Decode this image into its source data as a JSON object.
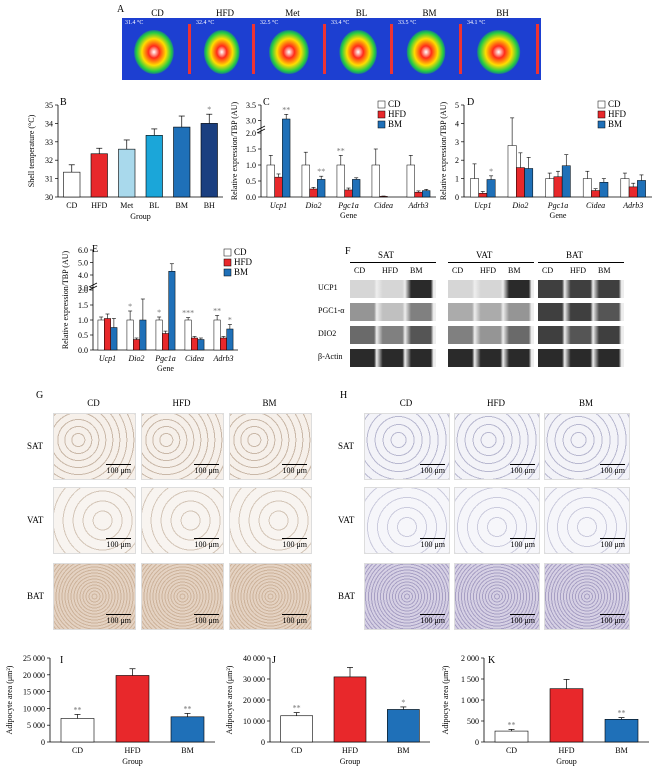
{
  "panels": {
    "A": "A",
    "B": "B",
    "C": "C",
    "D": "D",
    "E": "E",
    "F": "F",
    "G": "G",
    "H": "H",
    "I": "I",
    "J": "J",
    "K": "K"
  },
  "thermal": {
    "groups": [
      "CD",
      "HFD",
      "Met",
      "BL",
      "BM",
      "BH"
    ],
    "temps": [
      "31.4 °C",
      "32.4 °C",
      "32.5 °C",
      "33.4 °C",
      "33.5 °C",
      "34.1 °C"
    ]
  },
  "colors": {
    "CD": "#ffffff",
    "HFD": "#e8282b",
    "Met": "#a9d9ec",
    "BL": "#1ba6d9",
    "BM": "#1f70b8",
    "BH": "#1b3f80"
  },
  "chart_data": [
    {
      "id": "B",
      "type": "bar",
      "categories": [
        "CD",
        "HFD",
        "Met",
        "BL",
        "BM",
        "BH"
      ],
      "values": [
        31.35,
        32.35,
        32.6,
        33.35,
        33.8,
        34.0
      ],
      "errors": [
        0.4,
        0.3,
        0.5,
        0.35,
        0.6,
        0.5
      ],
      "sig": [
        "",
        "",
        "",
        "",
        "",
        "*"
      ],
      "ylabel": "Shell temperature (°C)",
      "xlabel": "Group",
      "ylim": [
        30,
        35
      ],
      "yticks": [
        30,
        31,
        32,
        33,
        34,
        35
      ]
    },
    {
      "id": "C",
      "type": "bar",
      "categories": [
        "Ucp1",
        "Dio2",
        "Pgc1a",
        "Cidea",
        "Adrb3"
      ],
      "ylabel": "Relative expression/TBP (AU)",
      "xlabel": "Gene",
      "yticks": [
        0,
        0.5,
        1.0,
        1.5,
        2.0,
        3.0,
        3.5
      ],
      "legend": [
        "CD",
        "HFD",
        "BM"
      ],
      "series": [
        {
          "name": "CD",
          "values": [
            1.0,
            1.0,
            1.0,
            1.0,
            1.0
          ],
          "errors": [
            0.3,
            0.4,
            0.3,
            0.5,
            0.3
          ]
        },
        {
          "name": "HFD",
          "values": [
            0.62,
            0.25,
            0.22,
            0.02,
            0.15
          ],
          "errors": [
            0.1,
            0.05,
            0.06,
            0.01,
            0.04
          ]
        },
        {
          "name": "BM",
          "values": [
            3.05,
            0.55,
            0.55,
            0.0,
            0.2
          ],
          "errors": [
            0.15,
            0.1,
            0.05,
            0.0,
            0.04
          ]
        }
      ],
      "sig": [
        [
          "",
          "",
          "**"
        ],
        [
          "",
          "",
          "**"
        ],
        [
          "**",
          "",
          ""
        ],
        [
          "",
          "",
          ""
        ],
        [
          "",
          "",
          ""
        ]
      ]
    },
    {
      "id": "D",
      "type": "bar",
      "categories": [
        "Ucp1",
        "Dio2",
        "Pgc1a",
        "Cidea",
        "Adrb3"
      ],
      "ylabel": "Relative expression/TBP (AU)",
      "xlabel": "Gene",
      "ylim": [
        0,
        5
      ],
      "yticks": [
        0,
        1,
        2,
        3,
        4,
        5
      ],
      "legend": [
        "CD",
        "HFD",
        "BM"
      ],
      "series": [
        {
          "name": "CD",
          "values": [
            1.0,
            2.8,
            1.0,
            1.0,
            1.0
          ],
          "errors": [
            0.8,
            1.5,
            0.3,
            0.4,
            0.3
          ]
        },
        {
          "name": "HFD",
          "values": [
            0.2,
            1.6,
            1.1,
            0.35,
            0.55
          ],
          "errors": [
            0.1,
            0.8,
            0.3,
            0.1,
            0.2
          ]
        },
        {
          "name": "BM",
          "values": [
            0.95,
            1.55,
            1.7,
            0.8,
            0.9
          ],
          "errors": [
            0.2,
            0.6,
            0.6,
            0.2,
            0.3
          ]
        }
      ],
      "sig": [
        [
          "",
          "",
          "*"
        ],
        [
          "",
          "",
          ""
        ],
        [
          "",
          "",
          ""
        ],
        [
          "",
          "",
          ""
        ],
        [
          "",
          "",
          ""
        ]
      ]
    },
    {
      "id": "E",
      "type": "bar",
      "categories": [
        "Ucp1",
        "Dio2",
        "Pgc1a",
        "Cidea",
        "Adrb3"
      ],
      "ylabel": "Relative expression/TBP (AU)",
      "xlabel": "Gene",
      "yticks": [
        0,
        0.5,
        1.0,
        1.5,
        2.0,
        3.0,
        4.0,
        5.0,
        6.0
      ],
      "legend": [
        "CD",
        "HFD",
        "BM"
      ],
      "series": [
        {
          "name": "CD",
          "values": [
            1.0,
            1.0,
            1.0,
            1.0,
            1.0
          ],
          "errors": [
            0.1,
            0.3,
            0.1,
            0.08,
            0.15
          ]
        },
        {
          "name": "HFD",
          "values": [
            1.05,
            0.35,
            0.55,
            0.4,
            0.4
          ],
          "errors": [
            0.15,
            0.05,
            0.08,
            0.05,
            0.05
          ]
        },
        {
          "name": "BM",
          "values": [
            0.75,
            1.0,
            4.3,
            0.35,
            0.7
          ],
          "errors": [
            0.3,
            0.7,
            0.6,
            0.05,
            0.15
          ]
        }
      ],
      "sig": [
        [
          "",
          "",
          ""
        ],
        [
          "*",
          "",
          ""
        ],
        [
          "*",
          "",
          ""
        ],
        [
          "***",
          "",
          ""
        ],
        [
          "**",
          "",
          "*"
        ]
      ]
    },
    {
      "id": "I",
      "type": "bar",
      "categories": [
        "CD",
        "HFD",
        "BM"
      ],
      "values": [
        7000,
        19800,
        7500
      ],
      "errors": [
        1200,
        2000,
        1000
      ],
      "sig": [
        "**",
        "",
        "**"
      ],
      "ylabel": "Adipocyte area (μm²)",
      "xlabel": "Group",
      "ylim": [
        0,
        25000
      ],
      "yticks": [
        0,
        5000,
        10000,
        15000,
        20000,
        25000
      ],
      "ytick_labels": [
        "0",
        "5 000",
        "10 000",
        "15 000",
        "20 000",
        "25 000"
      ]
    },
    {
      "id": "J",
      "type": "bar",
      "categories": [
        "CD",
        "HFD",
        "BM"
      ],
      "values": [
        12500,
        31000,
        15500
      ],
      "errors": [
        1500,
        4500,
        1200
      ],
      "sig": [
        "**",
        "",
        "*"
      ],
      "ylabel": "Adipocyte area (μm²)",
      "xlabel": "Group",
      "ylim": [
        0,
        40000
      ],
      "yticks": [
        0,
        10000,
        20000,
        30000,
        40000
      ],
      "ytick_labels": [
        "0",
        "10 000",
        "20 000",
        "30 000",
        "40 000"
      ]
    },
    {
      "id": "K",
      "type": "bar",
      "categories": [
        "CD",
        "HFD",
        "BM"
      ],
      "values": [
        260,
        1270,
        540
      ],
      "errors": [
        40,
        220,
        40
      ],
      "sig": [
        "**",
        "",
        "**"
      ],
      "ylabel": "Adipocyte area (μm²)",
      "xlabel": "Group",
      "ylim": [
        0,
        2000
      ],
      "yticks": [
        0,
        500,
        1000,
        1500,
        2000
      ],
      "ytick_labels": [
        "0",
        "500",
        "1 000",
        "1 500",
        "2 000"
      ]
    }
  ],
  "western": {
    "tissues": [
      "SAT",
      "VAT",
      "BAT"
    ],
    "lanes": [
      "CD",
      "HFD",
      "BM"
    ],
    "proteins": [
      "UCP1",
      "PGC1-α",
      "DIO2",
      "β-Actin"
    ]
  },
  "histology": {
    "groups": [
      "CD",
      "HFD",
      "BM"
    ],
    "tissues": [
      "SAT",
      "VAT",
      "BAT"
    ],
    "scalebar": "100 μm"
  }
}
